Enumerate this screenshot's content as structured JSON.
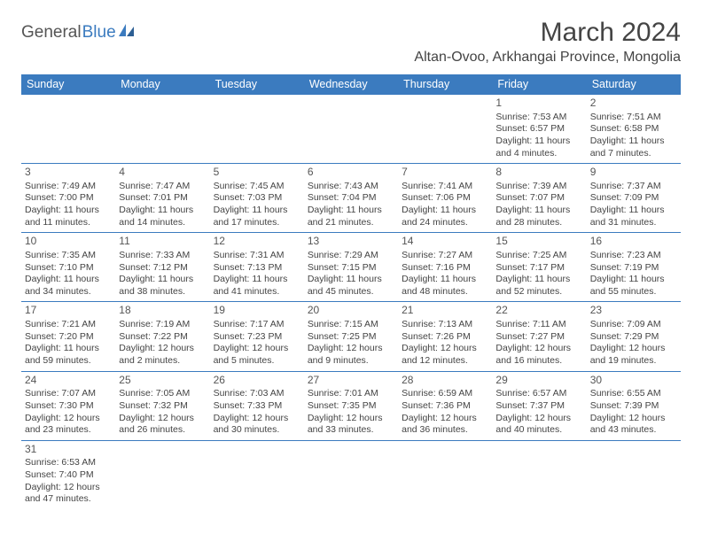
{
  "logo": {
    "text1": "General",
    "text2": "Blue"
  },
  "title": "March 2024",
  "location": "Altan-Ovoo, Arkhangai Province, Mongolia",
  "colors": {
    "header_bg": "#3b7bbf",
    "header_text": "#ffffff",
    "border": "#3b7bbf",
    "text": "#444444",
    "logo_gray": "#555555",
    "logo_blue": "#3b7bbf",
    "background": "#ffffff"
  },
  "typography": {
    "title_fontsize": 30,
    "location_fontsize": 16,
    "dayheader_fontsize": 12.5,
    "cell_fontsize": 10.5,
    "daynum_fontsize": 12
  },
  "dayHeaders": [
    "Sunday",
    "Monday",
    "Tuesday",
    "Wednesday",
    "Thursday",
    "Friday",
    "Saturday"
  ],
  "weeks": [
    [
      null,
      null,
      null,
      null,
      null,
      {
        "n": "1",
        "sr": "Sunrise: 7:53 AM",
        "ss": "Sunset: 6:57 PM",
        "dl": "Daylight: 11 hours and 4 minutes."
      },
      {
        "n": "2",
        "sr": "Sunrise: 7:51 AM",
        "ss": "Sunset: 6:58 PM",
        "dl": "Daylight: 11 hours and 7 minutes."
      }
    ],
    [
      {
        "n": "3",
        "sr": "Sunrise: 7:49 AM",
        "ss": "Sunset: 7:00 PM",
        "dl": "Daylight: 11 hours and 11 minutes."
      },
      {
        "n": "4",
        "sr": "Sunrise: 7:47 AM",
        "ss": "Sunset: 7:01 PM",
        "dl": "Daylight: 11 hours and 14 minutes."
      },
      {
        "n": "5",
        "sr": "Sunrise: 7:45 AM",
        "ss": "Sunset: 7:03 PM",
        "dl": "Daylight: 11 hours and 17 minutes."
      },
      {
        "n": "6",
        "sr": "Sunrise: 7:43 AM",
        "ss": "Sunset: 7:04 PM",
        "dl": "Daylight: 11 hours and 21 minutes."
      },
      {
        "n": "7",
        "sr": "Sunrise: 7:41 AM",
        "ss": "Sunset: 7:06 PM",
        "dl": "Daylight: 11 hours and 24 minutes."
      },
      {
        "n": "8",
        "sr": "Sunrise: 7:39 AM",
        "ss": "Sunset: 7:07 PM",
        "dl": "Daylight: 11 hours and 28 minutes."
      },
      {
        "n": "9",
        "sr": "Sunrise: 7:37 AM",
        "ss": "Sunset: 7:09 PM",
        "dl": "Daylight: 11 hours and 31 minutes."
      }
    ],
    [
      {
        "n": "10",
        "sr": "Sunrise: 7:35 AM",
        "ss": "Sunset: 7:10 PM",
        "dl": "Daylight: 11 hours and 34 minutes."
      },
      {
        "n": "11",
        "sr": "Sunrise: 7:33 AM",
        "ss": "Sunset: 7:12 PM",
        "dl": "Daylight: 11 hours and 38 minutes."
      },
      {
        "n": "12",
        "sr": "Sunrise: 7:31 AM",
        "ss": "Sunset: 7:13 PM",
        "dl": "Daylight: 11 hours and 41 minutes."
      },
      {
        "n": "13",
        "sr": "Sunrise: 7:29 AM",
        "ss": "Sunset: 7:15 PM",
        "dl": "Daylight: 11 hours and 45 minutes."
      },
      {
        "n": "14",
        "sr": "Sunrise: 7:27 AM",
        "ss": "Sunset: 7:16 PM",
        "dl": "Daylight: 11 hours and 48 minutes."
      },
      {
        "n": "15",
        "sr": "Sunrise: 7:25 AM",
        "ss": "Sunset: 7:17 PM",
        "dl": "Daylight: 11 hours and 52 minutes."
      },
      {
        "n": "16",
        "sr": "Sunrise: 7:23 AM",
        "ss": "Sunset: 7:19 PM",
        "dl": "Daylight: 11 hours and 55 minutes."
      }
    ],
    [
      {
        "n": "17",
        "sr": "Sunrise: 7:21 AM",
        "ss": "Sunset: 7:20 PM",
        "dl": "Daylight: 11 hours and 59 minutes."
      },
      {
        "n": "18",
        "sr": "Sunrise: 7:19 AM",
        "ss": "Sunset: 7:22 PM",
        "dl": "Daylight: 12 hours and 2 minutes."
      },
      {
        "n": "19",
        "sr": "Sunrise: 7:17 AM",
        "ss": "Sunset: 7:23 PM",
        "dl": "Daylight: 12 hours and 5 minutes."
      },
      {
        "n": "20",
        "sr": "Sunrise: 7:15 AM",
        "ss": "Sunset: 7:25 PM",
        "dl": "Daylight: 12 hours and 9 minutes."
      },
      {
        "n": "21",
        "sr": "Sunrise: 7:13 AM",
        "ss": "Sunset: 7:26 PM",
        "dl": "Daylight: 12 hours and 12 minutes."
      },
      {
        "n": "22",
        "sr": "Sunrise: 7:11 AM",
        "ss": "Sunset: 7:27 PM",
        "dl": "Daylight: 12 hours and 16 minutes."
      },
      {
        "n": "23",
        "sr": "Sunrise: 7:09 AM",
        "ss": "Sunset: 7:29 PM",
        "dl": "Daylight: 12 hours and 19 minutes."
      }
    ],
    [
      {
        "n": "24",
        "sr": "Sunrise: 7:07 AM",
        "ss": "Sunset: 7:30 PM",
        "dl": "Daylight: 12 hours and 23 minutes."
      },
      {
        "n": "25",
        "sr": "Sunrise: 7:05 AM",
        "ss": "Sunset: 7:32 PM",
        "dl": "Daylight: 12 hours and 26 minutes."
      },
      {
        "n": "26",
        "sr": "Sunrise: 7:03 AM",
        "ss": "Sunset: 7:33 PM",
        "dl": "Daylight: 12 hours and 30 minutes."
      },
      {
        "n": "27",
        "sr": "Sunrise: 7:01 AM",
        "ss": "Sunset: 7:35 PM",
        "dl": "Daylight: 12 hours and 33 minutes."
      },
      {
        "n": "28",
        "sr": "Sunrise: 6:59 AM",
        "ss": "Sunset: 7:36 PM",
        "dl": "Daylight: 12 hours and 36 minutes."
      },
      {
        "n": "29",
        "sr": "Sunrise: 6:57 AM",
        "ss": "Sunset: 7:37 PM",
        "dl": "Daylight: 12 hours and 40 minutes."
      },
      {
        "n": "30",
        "sr": "Sunrise: 6:55 AM",
        "ss": "Sunset: 7:39 PM",
        "dl": "Daylight: 12 hours and 43 minutes."
      }
    ],
    [
      {
        "n": "31",
        "sr": "Sunrise: 6:53 AM",
        "ss": "Sunset: 7:40 PM",
        "dl": "Daylight: 12 hours and 47 minutes."
      },
      null,
      null,
      null,
      null,
      null,
      null
    ]
  ]
}
